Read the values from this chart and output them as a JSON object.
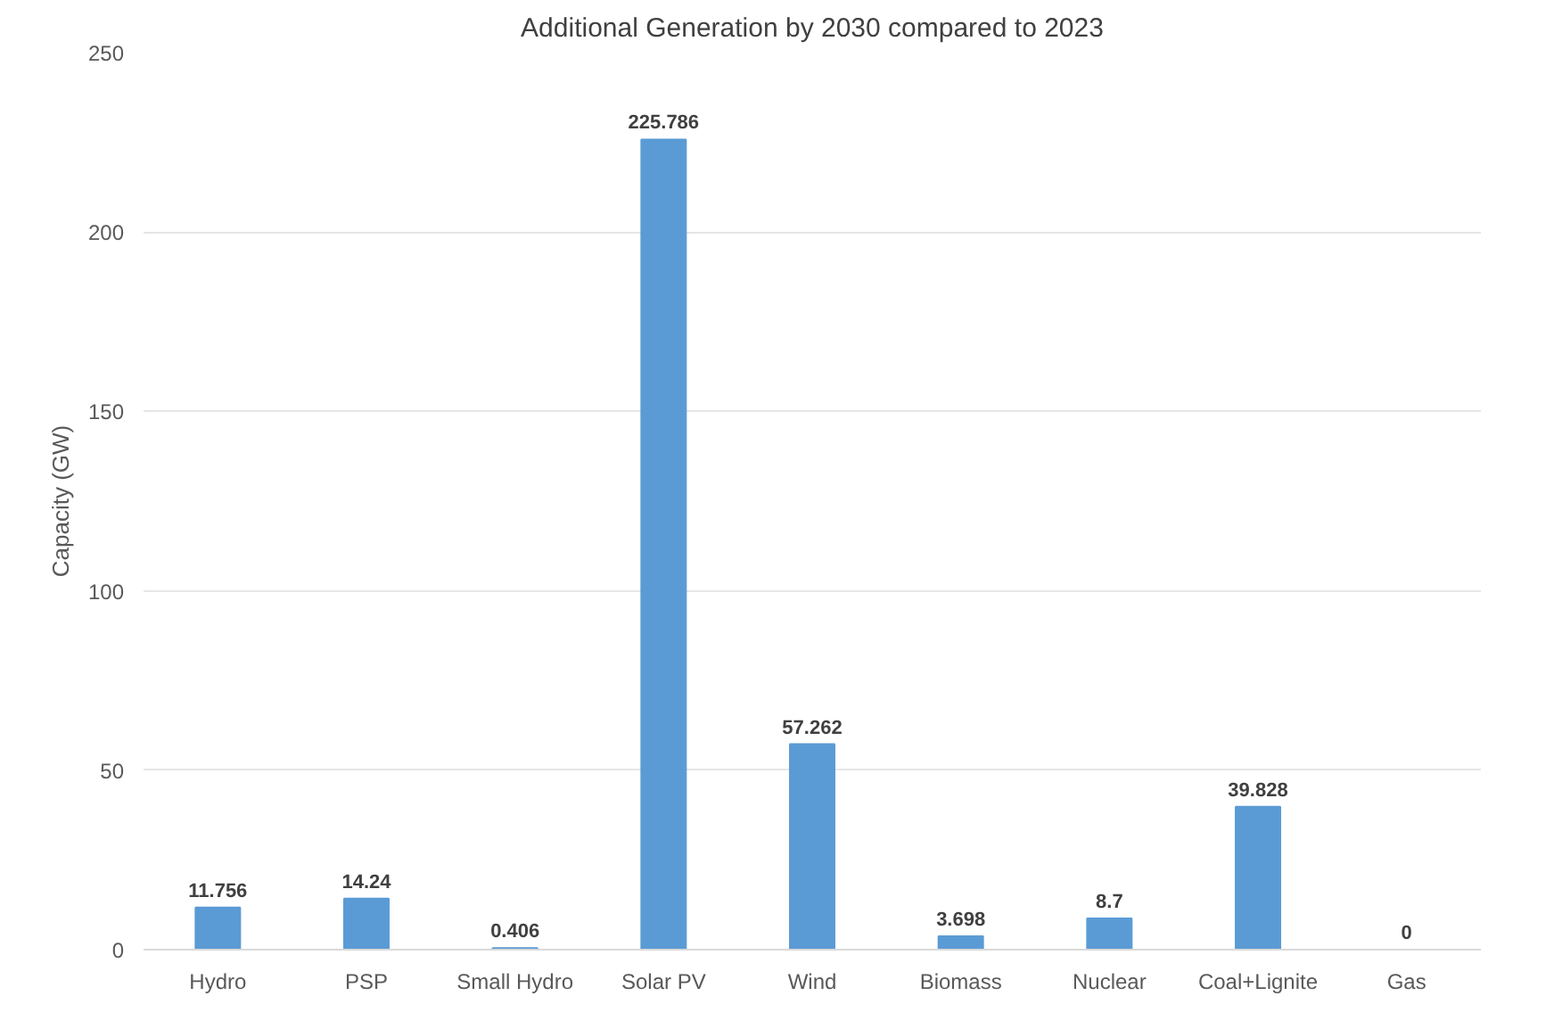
{
  "chart_data": {
    "type": "bar",
    "title": "Additional Generation by 2030 compared to 2023",
    "ylabel": "Capacity (GW)",
    "categories": [
      "Hydro",
      "PSP",
      "Small Hydro",
      "Solar PV",
      "Wind",
      "Biomass",
      "Nuclear",
      "Coal+Lignite",
      "Gas"
    ],
    "values": [
      11.756,
      14.24,
      0.406,
      225.786,
      57.262,
      3.698,
      8.7,
      39.828,
      0
    ],
    "color": "#5b9bd5",
    "ylim": [
      0,
      250
    ],
    "yticks": [
      0,
      50,
      100,
      150,
      200,
      250
    ],
    "grid": "y",
    "data_labels": true
  }
}
